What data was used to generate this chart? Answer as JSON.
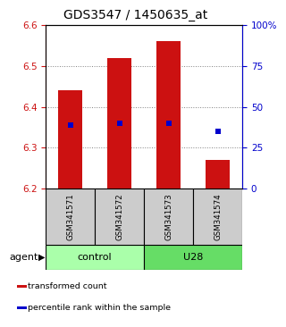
{
  "title": "GDS3547 / 1450635_at",
  "samples": [
    "GSM341571",
    "GSM341572",
    "GSM341573",
    "GSM341574"
  ],
  "bar_tops": [
    6.44,
    6.52,
    6.56,
    6.27
  ],
  "bar_bottom": 6.2,
  "blue_dots": [
    6.355,
    6.36,
    6.36,
    6.34
  ],
  "ylim_left": [
    6.2,
    6.6
  ],
  "ylim_right": [
    0,
    100
  ],
  "yticks_left": [
    6.2,
    6.3,
    6.4,
    6.5,
    6.6
  ],
  "yticks_right": [
    0,
    25,
    50,
    75,
    100
  ],
  "ytick_labels_right": [
    "0",
    "25",
    "50",
    "75",
    "100%"
  ],
  "bar_color": "#cc1111",
  "dot_color": "#0000cc",
  "groups": [
    {
      "label": "control",
      "indices": [
        0,
        1
      ],
      "color": "#aaffaa"
    },
    {
      "label": "U28",
      "indices": [
        2,
        3
      ],
      "color": "#66dd66"
    }
  ],
  "agent_label": "agent",
  "legend_items": [
    {
      "color": "#cc1111",
      "label": "transformed count"
    },
    {
      "color": "#0000cc",
      "label": "percentile rank within the sample"
    }
  ],
  "bar_width": 0.5,
  "sample_box_color": "#cccccc",
  "title_fontsize": 10,
  "tick_fontsize": 7.5,
  "label_fontsize": 8
}
